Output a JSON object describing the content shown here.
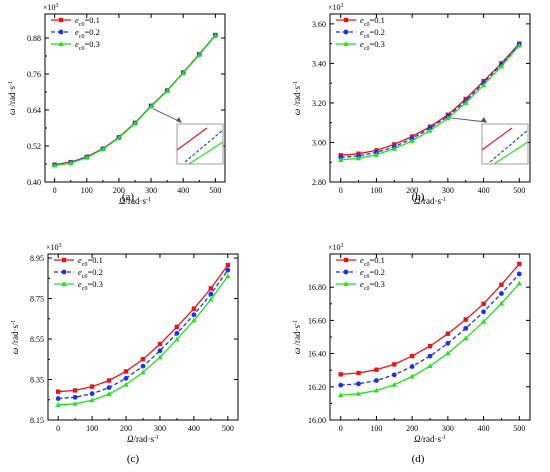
{
  "chart_data": [
    {
      "type": "line",
      "panel_label": "(a)",
      "xlabel": "Ω",
      "xunit": "/rad·s",
      "xunit_exp": "-1",
      "ylabel": "ω",
      "yunit": "/rad·s",
      "yunit_exp": "-1",
      "y_multiplier": "×10",
      "y_multiplier_exp": "3",
      "x": [
        0,
        50,
        100,
        150,
        200,
        250,
        300,
        350,
        400,
        450,
        500
      ],
      "xlim": [
        -30,
        530
      ],
      "ylim": [
        0.4,
        0.96
      ],
      "xticks": [
        "0",
        "100",
        "200",
        "300",
        "400",
        "500"
      ],
      "yticks": [
        "0.40",
        "0.52",
        "0.64",
        "0.76",
        "0.88"
      ],
      "legend_position": "top-left",
      "inset": true,
      "series": [
        {
          "name": "e",
          "name_sub": "c0",
          "name_suffix": "=0.1",
          "color": "#e8141c",
          "dash": "solid",
          "marker": "square",
          "values": [
            0.458,
            0.466,
            0.484,
            0.511,
            0.549,
            0.597,
            0.654,
            0.705,
            0.765,
            0.826,
            0.89
          ]
        },
        {
          "name": "e",
          "name_sub": "c0",
          "name_suffix": "=0.2",
          "color": "#1d2ff0",
          "dash": "dashed",
          "marker": "circle",
          "values": [
            0.457,
            0.465,
            0.483,
            0.51,
            0.548,
            0.596,
            0.653,
            0.704,
            0.764,
            0.825,
            0.889
          ]
        },
        {
          "name": "e",
          "name_sub": "c0",
          "name_suffix": "=0.3",
          "color": "#22e020",
          "dash": "solid",
          "marker": "triangle",
          "values": [
            0.455,
            0.463,
            0.481,
            0.509,
            0.547,
            0.595,
            0.652,
            0.703,
            0.763,
            0.824,
            0.888
          ]
        }
      ]
    },
    {
      "type": "line",
      "panel_label": "(b)",
      "xlabel": "Ω",
      "xunit": "/rad·s",
      "xunit_exp": "-1",
      "ylabel": "ω",
      "yunit": "/rad·s",
      "yunit_exp": "-1",
      "y_multiplier": "×10",
      "y_multiplier_exp": "3",
      "x": [
        0,
        50,
        100,
        150,
        200,
        250,
        300,
        350,
        400,
        450,
        500
      ],
      "xlim": [
        -30,
        530
      ],
      "ylim": [
        2.8,
        3.65
      ],
      "xticks": [
        "0",
        "100",
        "200",
        "300",
        "400",
        "500"
      ],
      "yticks": [
        "2.80",
        "3.00",
        "3.20",
        "3.40",
        "3.60"
      ],
      "legend_position": "top-left",
      "inset": true,
      "series": [
        {
          "name": "e",
          "name_sub": "c0",
          "name_suffix": "=0.1",
          "color": "#e8141c",
          "dash": "solid",
          "marker": "square",
          "values": [
            2.935,
            2.943,
            2.96,
            2.99,
            3.03,
            3.08,
            3.14,
            3.22,
            3.31,
            3.4,
            3.5
          ]
        },
        {
          "name": "e",
          "name_sub": "c0",
          "name_suffix": "=0.2",
          "color": "#1d2ff0",
          "dash": "dashed",
          "marker": "circle",
          "values": [
            2.925,
            2.932,
            2.95,
            2.978,
            3.02,
            3.072,
            3.132,
            3.21,
            3.302,
            3.395,
            3.498
          ]
        },
        {
          "name": "e",
          "name_sub": "c0",
          "name_suffix": "=0.3",
          "color": "#22e020",
          "dash": "solid",
          "marker": "triangle",
          "values": [
            2.912,
            2.92,
            2.938,
            2.968,
            3.008,
            3.06,
            3.122,
            3.2,
            3.29,
            3.385,
            3.49
          ]
        }
      ]
    },
    {
      "type": "line",
      "panel_label": "(c)",
      "xlabel": "Ω",
      "xunit": "/rad·s",
      "xunit_exp": "-1",
      "ylabel": "ω",
      "yunit": "/rad·s",
      "yunit_exp": "-1",
      "y_multiplier": "×10",
      "y_multiplier_exp": "3",
      "x": [
        0,
        50,
        100,
        150,
        200,
        250,
        300,
        350,
        400,
        450,
        500
      ],
      "xlim": [
        -30,
        530
      ],
      "ylim": [
        8.15,
        8.97
      ],
      "xticks": [
        "0",
        "100",
        "200",
        "300",
        "400",
        "500"
      ],
      "yticks": [
        "8.15",
        "8.35",
        "8.55",
        "8.75",
        "8.95"
      ],
      "legend_position": "top-left",
      "inset": false,
      "series": [
        {
          "name": "e",
          "name_sub": "c0",
          "name_suffix": "=0.1",
          "color": "#e8141c",
          "dash": "solid",
          "marker": "square",
          "values": [
            8.29,
            8.296,
            8.315,
            8.345,
            8.39,
            8.45,
            8.525,
            8.61,
            8.7,
            8.8,
            8.915
          ]
        },
        {
          "name": "e",
          "name_sub": "c0",
          "name_suffix": "=0.2",
          "color": "#1d2ff0",
          "dash": "dashed",
          "marker": "circle",
          "values": [
            8.256,
            8.262,
            8.28,
            8.31,
            8.356,
            8.416,
            8.492,
            8.578,
            8.67,
            8.772,
            8.89
          ]
        },
        {
          "name": "e",
          "name_sub": "c0",
          "name_suffix": "=0.3",
          "color": "#22e020",
          "dash": "solid",
          "marker": "triangle",
          "values": [
            8.225,
            8.23,
            8.248,
            8.278,
            8.325,
            8.385,
            8.46,
            8.548,
            8.642,
            8.745,
            8.86
          ]
        }
      ]
    },
    {
      "type": "line",
      "panel_label": "(d)",
      "xlabel": "Ω",
      "xunit": "/rad·s",
      "xunit_exp": "-1",
      "ylabel": "ω",
      "yunit": "/rad·s",
      "yunit_exp": "-1",
      "y_multiplier": "×10",
      "y_multiplier_exp": "3",
      "x": [
        0,
        50,
        100,
        150,
        200,
        250,
        300,
        350,
        400,
        450,
        500
      ],
      "xlim": [
        -30,
        530
      ],
      "ylim": [
        16.0,
        17.0
      ],
      "xticks": [
        "0",
        "100",
        "200",
        "300",
        "400",
        "500"
      ],
      "yticks": [
        "16.00",
        "16.20",
        "16.40",
        "16.60",
        "16.80"
      ],
      "legend_position": "top-left",
      "inset": false,
      "series": [
        {
          "name": "e",
          "name_sub": "c0",
          "name_suffix": "=0.1",
          "color": "#e8141c",
          "dash": "solid",
          "marker": "square",
          "values": [
            16.275,
            16.283,
            16.303,
            16.335,
            16.385,
            16.445,
            16.52,
            16.605,
            16.7,
            16.815,
            16.94
          ]
        },
        {
          "name": "e",
          "name_sub": "c0",
          "name_suffix": "=0.2",
          "color": "#1d2ff0",
          "dash": "dashed",
          "marker": "circle",
          "values": [
            16.21,
            16.218,
            16.238,
            16.272,
            16.322,
            16.385,
            16.462,
            16.552,
            16.652,
            16.762,
            16.88
          ]
        },
        {
          "name": "e",
          "name_sub": "c0",
          "name_suffix": "=0.3",
          "color": "#22e020",
          "dash": "solid",
          "marker": "triangle",
          "values": [
            16.15,
            16.158,
            16.178,
            16.212,
            16.262,
            16.325,
            16.402,
            16.492,
            16.592,
            16.702,
            16.822
          ]
        }
      ]
    }
  ]
}
